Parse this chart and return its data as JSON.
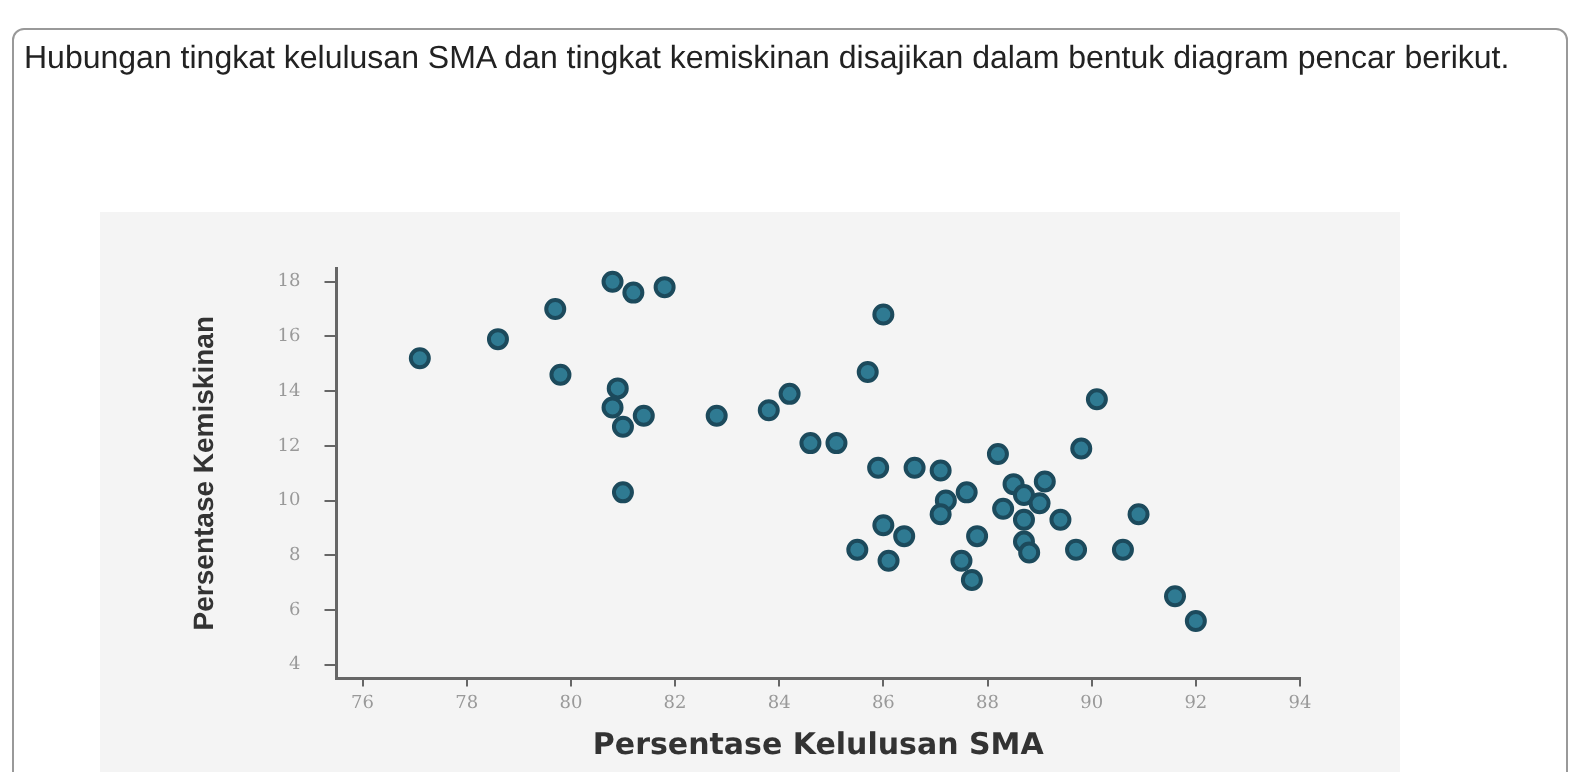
{
  "chart_data": {
    "type": "scatter",
    "title": "Hubungan tingkat kelulusan SMA dan tingkat kemiskinan disajikan dalam bentuk diagram pencar berikut.",
    "xlabel": "Persentase Kelulusan SMA",
    "ylabel": "Persentase Kemiskinan",
    "x": [
      77.1,
      78.6,
      79.7,
      79.8,
      80.8,
      81.2,
      81.8,
      80.9,
      80.8,
      81.0,
      81.4,
      82.8,
      81.0,
      86.0,
      85.7,
      84.2,
      83.8,
      84.6,
      85.1,
      90.1,
      85.9,
      86.6,
      87.1,
      88.2,
      89.8,
      87.6,
      87.2,
      87.1,
      88.5,
      88.7,
      89.1,
      89.0,
      88.3,
      88.7,
      89.4,
      90.9,
      86.0,
      86.4,
      85.5,
      86.1,
      87.8,
      88.7,
      88.8,
      89.7,
      90.6,
      87.5,
      87.7,
      91.6,
      92.0
    ],
    "series": [
      {
        "color": "#2f7a92",
        "values": [
          15.2,
          15.9,
          17.0,
          14.6,
          18.0,
          17.6,
          17.8,
          14.1,
          13.4,
          12.7,
          13.1,
          13.1,
          10.3,
          16.8,
          14.7,
          13.9,
          13.3,
          12.1,
          12.1,
          13.7,
          11.2,
          11.2,
          11.1,
          11.7,
          11.9,
          10.3,
          10.0,
          9.5,
          10.6,
          10.2,
          10.7,
          9.9,
          9.7,
          9.3,
          9.3,
          9.5,
          9.1,
          8.7,
          8.2,
          7.8,
          8.7,
          8.5,
          8.1,
          8.2,
          8.2,
          7.8,
          7.1,
          6.5,
          5.6
        ]
      }
    ],
    "xlim": [
      75.5,
      94
    ],
    "xticks": [
      76,
      78,
      80,
      82,
      84,
      86,
      88,
      90,
      92,
      94
    ],
    "ylim": [
      3.5,
      18.5
    ],
    "yticks": [
      4,
      6,
      8,
      10,
      12,
      14,
      16,
      18
    ],
    "grid": false,
    "legend": false,
    "marker": "circle"
  }
}
